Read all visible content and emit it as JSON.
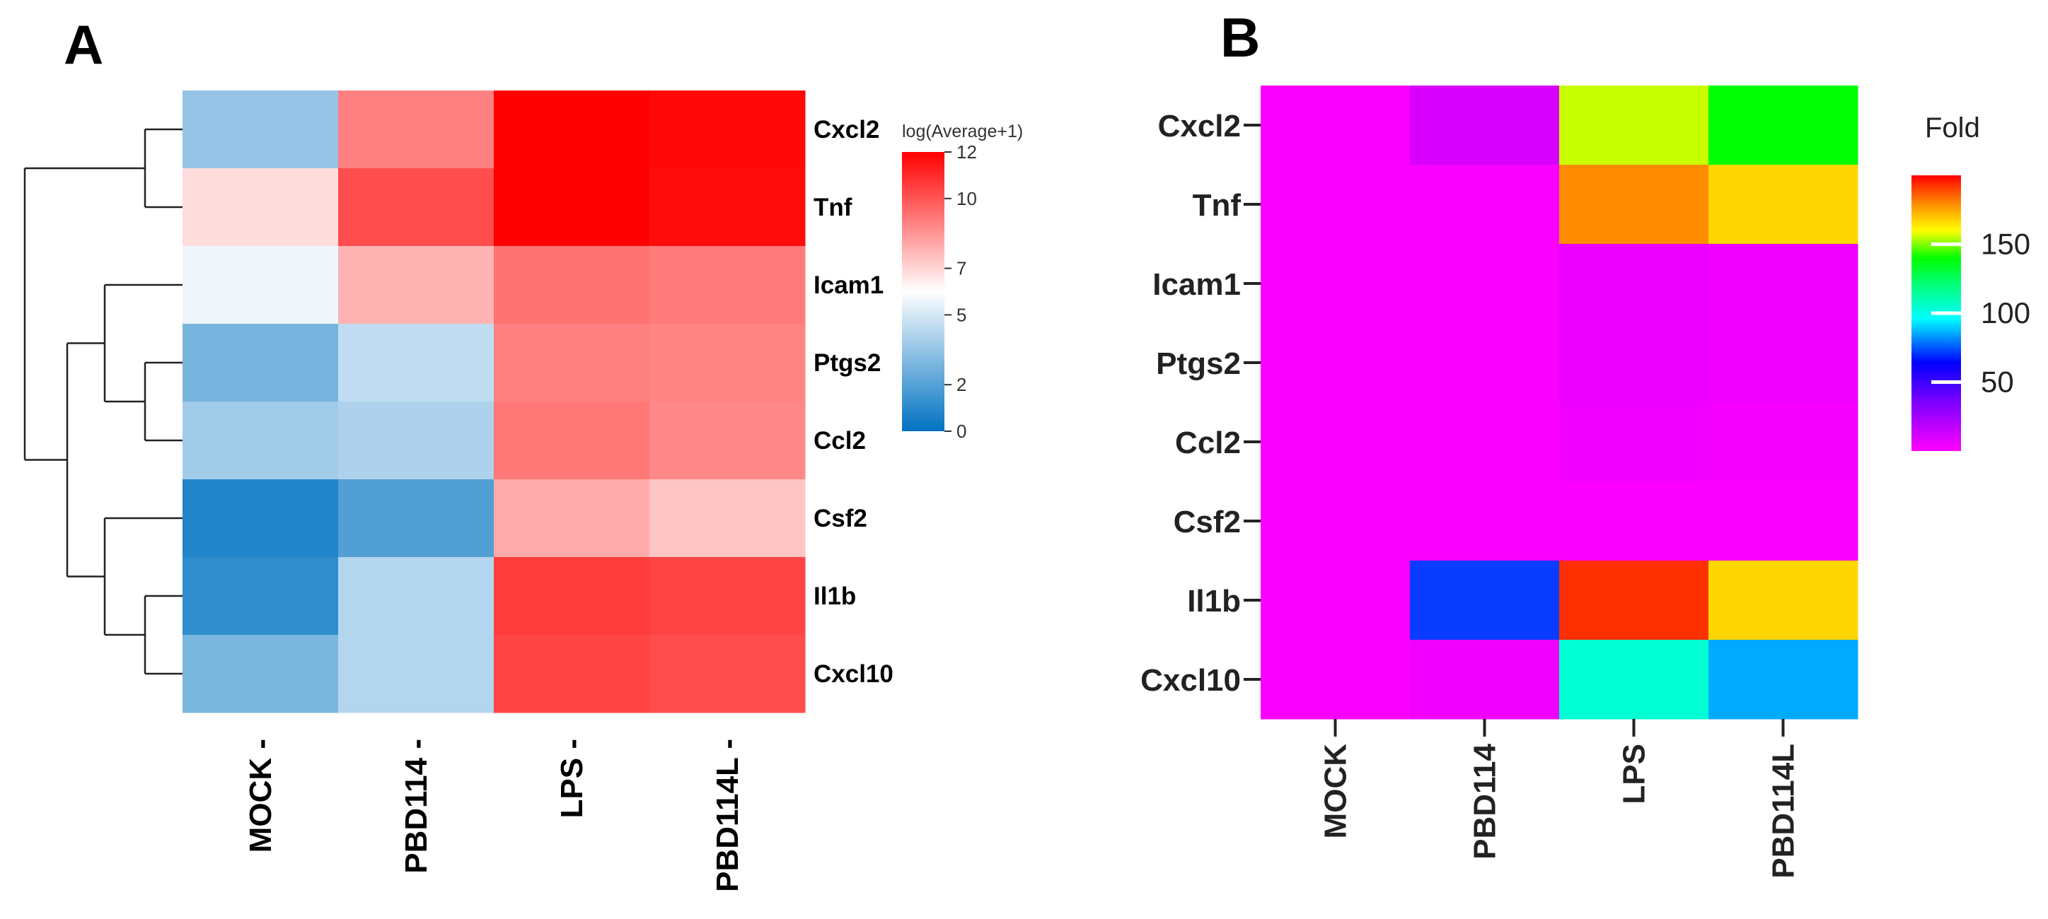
{
  "chart_data": [
    {
      "panel": "A",
      "type": "heatmap",
      "title": "",
      "conditions": [
        "MOCK",
        "PBD114",
        "LPS",
        "PBD114L"
      ],
      "genes": [
        "Cxcl2",
        "Tnf",
        "Icam1",
        "Ptgs2",
        "Ccl2",
        "Csf2",
        "Il1b",
        "Cxcl10"
      ],
      "values": [
        [
          3.5,
          9.0,
          12.0,
          11.8
        ],
        [
          6.8,
          10.2,
          12.0,
          11.7
        ],
        [
          5.6,
          7.8,
          9.3,
          9.1
        ],
        [
          2.8,
          4.5,
          9.0,
          8.9
        ],
        [
          3.8,
          4.1,
          9.2,
          8.8
        ],
        [
          0.8,
          1.9,
          8.0,
          7.4
        ],
        [
          1.1,
          4.2,
          10.6,
          10.4
        ],
        [
          2.9,
          4.2,
          10.4,
          10.2
        ]
      ],
      "legend": {
        "title": "log(Average+1)",
        "ticks": [
          "12",
          "10",
          "7",
          "5",
          "2",
          "0"
        ],
        "tick_values": [
          12,
          10,
          7,
          5,
          2,
          0
        ],
        "min": 0,
        "max": 12,
        "mid": 6
      },
      "dendrogram": "rows clustered: (Cxcl2,Tnf) ; ((Icam1,(Ptgs2,Ccl2)),(Csf2,(Il1b,Cxcl10)))",
      "colors": {
        "low": "#0072c2",
        "mid": "#ffffff",
        "high": "#ff0000"
      }
    },
    {
      "panel": "B",
      "type": "heatmap",
      "title": "",
      "conditions": [
        "MOCK",
        "PBD114",
        "LPS",
        "PBD114L"
      ],
      "genes": [
        "Cxcl2",
        "Tnf",
        "Icam1",
        "Ptgs2",
        "Ccl2",
        "Csf2",
        "Il1b",
        "Cxcl10"
      ],
      "values": [
        [
          1,
          8,
          165,
          140
        ],
        [
          1,
          1,
          200,
          175
        ],
        [
          1,
          1,
          4,
          3
        ],
        [
          1,
          1,
          4,
          3
        ],
        [
          1,
          1,
          3,
          2
        ],
        [
          1,
          1,
          1,
          1
        ],
        [
          1,
          45,
          210,
          175
        ],
        [
          1,
          3,
          105,
          75
        ]
      ],
      "legend": {
        "title": "Fold",
        "ticks": [
          "150",
          "100",
          "50"
        ],
        "tick_values": [
          150,
          100,
          50
        ],
        "min": 0,
        "max": 200
      }
    }
  ],
  "panel_labels": {
    "a": "A",
    "b": "B"
  }
}
